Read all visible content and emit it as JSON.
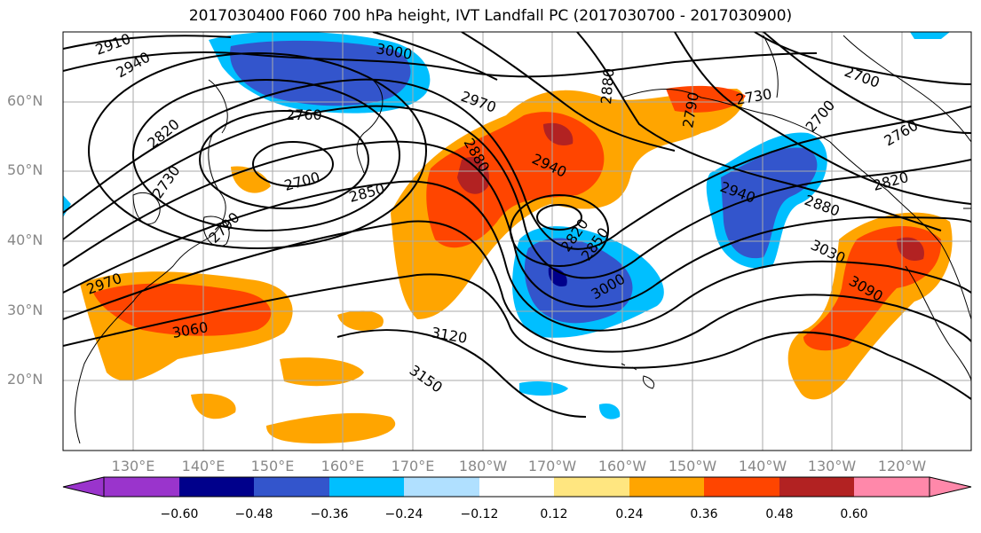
{
  "title": "2017030400 F060 700 hPa height, IVT Landfall PC (2017030700 - 2017030900)",
  "lat_labels": [
    "60°N",
    "50°N",
    "40°N",
    "30°N",
    "20°N"
  ],
  "lon_labels": [
    "130°E",
    "140°E",
    "150°E",
    "160°E",
    "170°E",
    "180°W",
    "170°W",
    "160°W",
    "150°W",
    "140°W",
    "130°W",
    "120°W"
  ],
  "contour_labels": [
    "2910",
    "2940",
    "3000",
    "2700",
    "2970",
    "2760",
    "2820",
    "2730",
    "2700",
    "2850",
    "2880",
    "2940",
    "2790",
    "2970",
    "3060",
    "3120",
    "3150",
    "2820",
    "2850",
    "3000",
    "2940",
    "2880",
    "3030",
    "3090",
    "2820",
    "2760",
    "2730",
    "2700",
    "2790",
    "2880"
  ],
  "colorbar": {
    "ticks": [
      "−0.60",
      "−0.48",
      "−0.36",
      "−0.24",
      "−0.12",
      "0.12",
      "0.24",
      "0.36",
      "0.48",
      "0.60"
    ],
    "colors": [
      "#9a34cc",
      "#00008b",
      "#3355cc",
      "#00bfff",
      "#b0e0ff",
      "#ffffff",
      "#ffe680",
      "#ffa500",
      "#ff4500",
      "#b22222",
      "#ff88aa"
    ]
  }
}
